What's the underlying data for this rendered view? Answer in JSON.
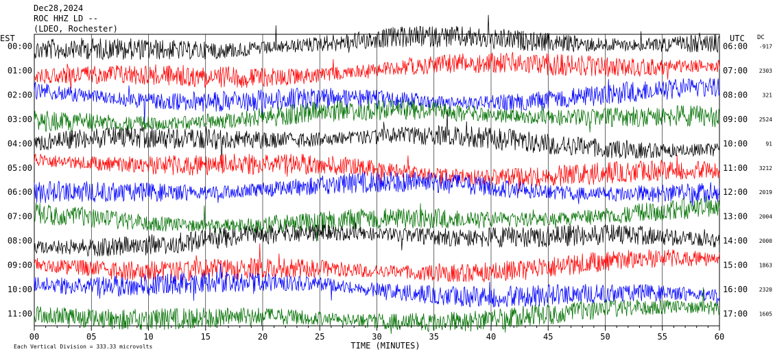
{
  "header": {
    "date": "Dec28,2024",
    "station": "ROC HHZ LD --",
    "location": "(LDEO, Rochester)"
  },
  "chart_data": {
    "type": "line",
    "title": "Dec28,2024",
    "left_axis_label": "EST",
    "right_axis_label": "UTC",
    "dc_label": "DC",
    "xlabel": "TIME (MINUTES)",
    "x_ticks": [
      "00",
      "05",
      "10",
      "15",
      "20",
      "25",
      "30",
      "35",
      "40",
      "45",
      "50",
      "55",
      "60"
    ],
    "xlim": [
      0,
      60
    ],
    "grid": true,
    "footer_note": "Each Vertical Division = 333.33 microvolts",
    "colors": [
      "#000000",
      "#ff0000",
      "#0000ff",
      "#007000"
    ],
    "rows": [
      {
        "est": "00:00",
        "utc": "06:00",
        "dc": "-917",
        "color": "#000000"
      },
      {
        "est": "01:00",
        "utc": "07:00",
        "dc": "2303",
        "color": "#ff0000"
      },
      {
        "est": "02:00",
        "utc": "08:00",
        "dc": "321",
        "color": "#0000ff"
      },
      {
        "est": "03:00",
        "utc": "09:00",
        "dc": "2524",
        "color": "#007000"
      },
      {
        "est": "04:00",
        "utc": "10:00",
        "dc": "91",
        "color": "#000000"
      },
      {
        "est": "05:00",
        "utc": "11:00",
        "dc": "3212",
        "color": "#ff0000"
      },
      {
        "est": "06:00",
        "utc": "12:00",
        "dc": "2019",
        "color": "#0000ff"
      },
      {
        "est": "07:00",
        "utc": "13:00",
        "dc": "2004",
        "color": "#007000"
      },
      {
        "est": "08:00",
        "utc": "14:00",
        "dc": "2000",
        "color": "#000000"
      },
      {
        "est": "09:00",
        "utc": "15:00",
        "dc": "1863",
        "color": "#ff0000"
      },
      {
        "est": "10:00",
        "utc": "16:00",
        "dc": "2320",
        "color": "#0000ff"
      },
      {
        "est": "11:00",
        "utc": "17:00",
        "dc": "1605",
        "color": "#007000"
      }
    ]
  }
}
